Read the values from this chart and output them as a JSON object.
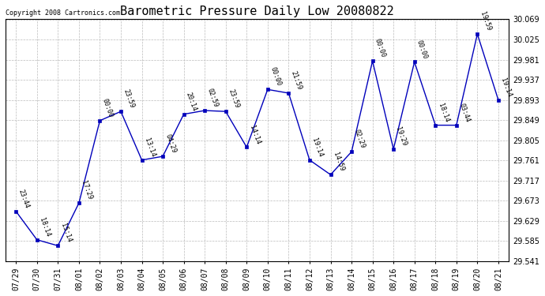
{
  "title": "Barometric Pressure Daily Low 20080822",
  "copyright": "Copyright 2008 Cartronics.com",
  "x_labels": [
    "07/29",
    "07/30",
    "07/31",
    "08/01",
    "08/02",
    "08/03",
    "08/04",
    "08/05",
    "08/06",
    "08/07",
    "08/08",
    "08/09",
    "08/10",
    "08/11",
    "08/12",
    "08/13",
    "08/14",
    "08/15",
    "08/16",
    "08/17",
    "08/18",
    "08/19",
    "08/20",
    "08/21"
  ],
  "y_values": [
    29.65,
    29.588,
    29.575,
    29.668,
    29.848,
    29.868,
    29.762,
    29.77,
    29.862,
    29.87,
    29.868,
    29.79,
    29.916,
    29.908,
    29.762,
    29.73,
    29.78,
    29.978,
    29.786,
    29.976,
    29.838,
    29.838,
    30.037,
    29.893
  ],
  "point_labels": [
    "23:44",
    "18:14",
    "15:14",
    "17:29",
    "00:00",
    "23:59",
    "13:14",
    "04:29",
    "20:14",
    "02:59",
    "23:59",
    "14:14",
    "00:00",
    "21:59",
    "19:14",
    "14:59",
    "02:29",
    "00:00",
    "19:29",
    "00:00",
    "18:14",
    "03:44",
    "19:59",
    "19:14"
  ],
  "line_color": "#0000bb",
  "marker_color": "#0000bb",
  "background_color": "#ffffff",
  "grid_color": "#bbbbbb",
  "ylim_min": 29.541,
  "ylim_max": 30.069,
  "ytick_step": 0.044,
  "title_fontsize": 11,
  "copyright_fontsize": 6,
  "tick_fontsize": 7,
  "point_label_fontsize": 6,
  "label_rotation": -70
}
